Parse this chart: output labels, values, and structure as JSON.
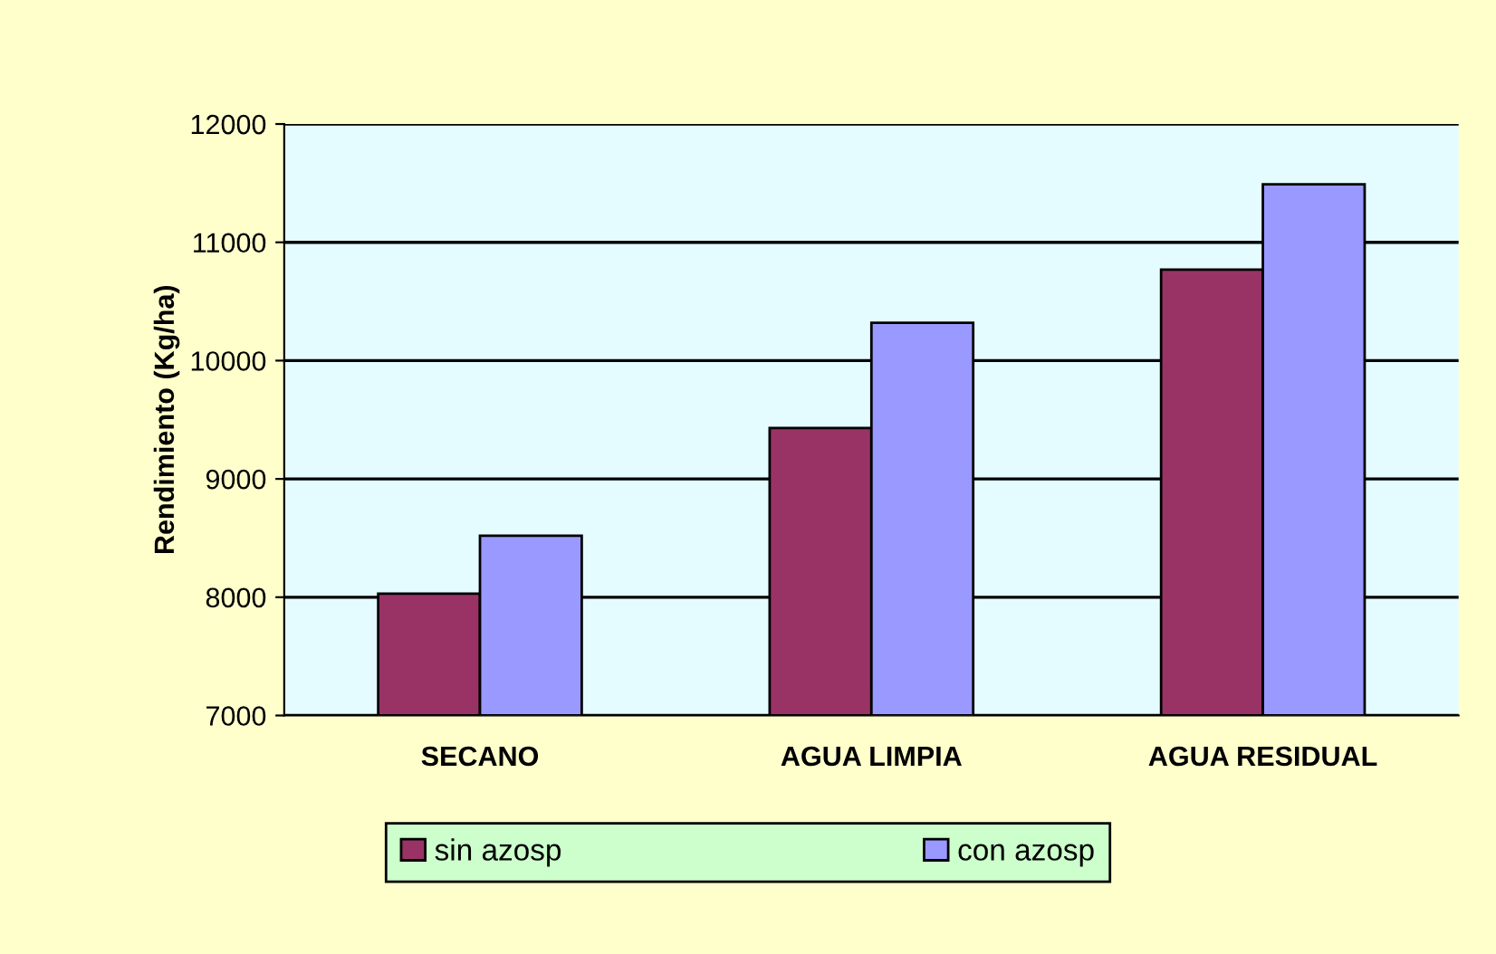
{
  "chart_data": {
    "type": "bar",
    "ylabel": "Rendimiento (Kg/ha)",
    "categories": [
      "SECANO",
      "AGUA LIMPIA",
      "AGUA RESIDUAL"
    ],
    "series": [
      {
        "name": "sin azosp",
        "color": "#993366",
        "values": [
          8030,
          9430,
          10770
        ]
      },
      {
        "name": "con azosp",
        "color": "#9999ff",
        "values": [
          8520,
          10320,
          11490
        ]
      }
    ],
    "ylim": [
      7000,
      12000
    ],
    "yticks": [
      7000,
      8000,
      9000,
      10000,
      11000,
      12000
    ],
    "grid": "y",
    "legend": "bottom"
  }
}
